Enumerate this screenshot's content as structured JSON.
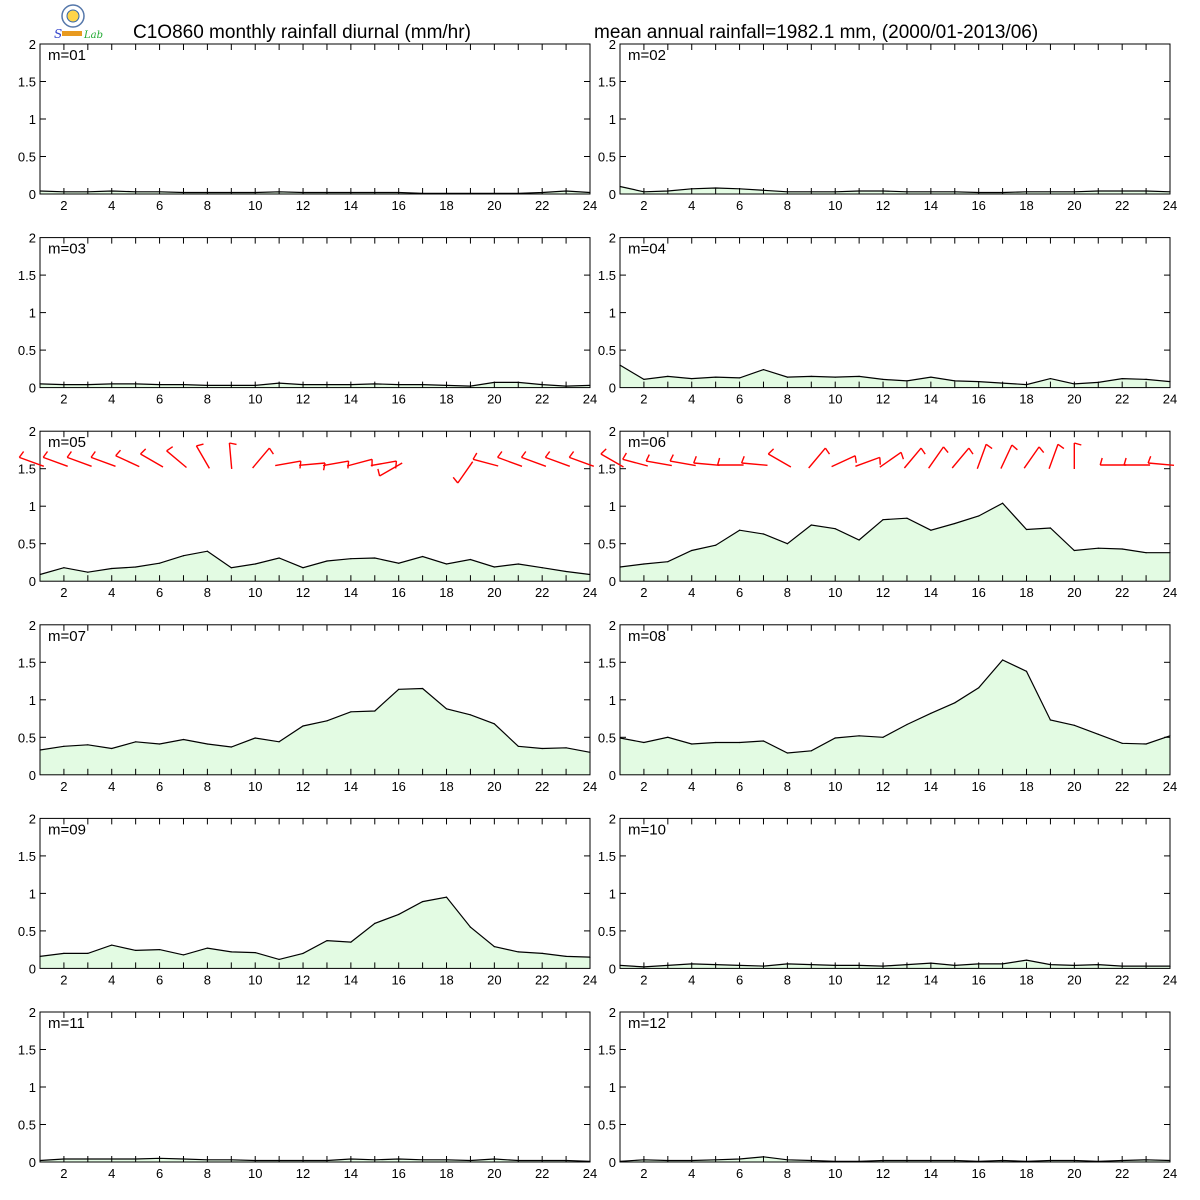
{
  "header": {
    "title_left": "C1O860 monthly rainfall diurnal (mm/hr)",
    "title_right": "mean annual rainfall=1982.1 mm, (2000/01-2013/06)",
    "logo_icon": "agency-seal-icon",
    "logo_text": "Lab"
  },
  "colors": {
    "fill": "#e3fbe3",
    "line": "#000000",
    "wind": "#ff0000"
  },
  "chart_data": [
    {
      "type": "area",
      "label": "m=01",
      "xlim": [
        1,
        24
      ],
      "ylim": [
        0,
        2
      ],
      "yticks": [
        "0",
        "0.5",
        "1",
        "1.5",
        "2"
      ],
      "xticks": [
        "2",
        "4",
        "6",
        "8",
        "10",
        "12",
        "14",
        "16",
        "18",
        "20",
        "22",
        "24"
      ],
      "x": [
        1,
        2,
        3,
        4,
        5,
        6,
        7,
        8,
        9,
        10,
        11,
        12,
        13,
        14,
        15,
        16,
        17,
        18,
        19,
        20,
        21,
        22,
        23,
        24
      ],
      "values": [
        0.04,
        0.03,
        0.03,
        0.04,
        0.03,
        0.03,
        0.02,
        0.02,
        0.02,
        0.02,
        0.03,
        0.02,
        0.02,
        0.02,
        0.02,
        0.02,
        0.01,
        0.01,
        0.01,
        0.01,
        0.01,
        0.02,
        0.04,
        0.02
      ]
    },
    {
      "type": "area",
      "label": "m=02",
      "xlim": [
        1,
        24
      ],
      "ylim": [
        0,
        2
      ],
      "yticks": [
        "0",
        "0.5",
        "1",
        "1.5",
        "2"
      ],
      "xticks": [
        "2",
        "4",
        "6",
        "8",
        "10",
        "12",
        "14",
        "16",
        "18",
        "20",
        "22",
        "24"
      ],
      "x": [
        1,
        2,
        3,
        4,
        5,
        6,
        7,
        8,
        9,
        10,
        11,
        12,
        13,
        14,
        15,
        16,
        17,
        18,
        19,
        20,
        21,
        22,
        23,
        24
      ],
      "values": [
        0.1,
        0.03,
        0.04,
        0.07,
        0.08,
        0.07,
        0.05,
        0.03,
        0.03,
        0.03,
        0.04,
        0.04,
        0.03,
        0.03,
        0.03,
        0.02,
        0.02,
        0.03,
        0.03,
        0.03,
        0.04,
        0.04,
        0.04,
        0.03
      ]
    },
    {
      "type": "area",
      "label": "m=03",
      "xlim": [
        1,
        24
      ],
      "ylim": [
        0,
        2
      ],
      "yticks": [
        "0",
        "0.5",
        "1",
        "1.5",
        "2"
      ],
      "xticks": [
        "2",
        "4",
        "6",
        "8",
        "10",
        "12",
        "14",
        "16",
        "18",
        "20",
        "22",
        "24"
      ],
      "x": [
        1,
        2,
        3,
        4,
        5,
        6,
        7,
        8,
        9,
        10,
        11,
        12,
        13,
        14,
        15,
        16,
        17,
        18,
        19,
        20,
        21,
        22,
        23,
        24
      ],
      "values": [
        0.05,
        0.04,
        0.04,
        0.05,
        0.05,
        0.04,
        0.04,
        0.03,
        0.03,
        0.03,
        0.06,
        0.04,
        0.04,
        0.04,
        0.05,
        0.04,
        0.04,
        0.03,
        0.02,
        0.07,
        0.07,
        0.04,
        0.02,
        0.03
      ]
    },
    {
      "type": "area",
      "label": "m=04",
      "xlim": [
        1,
        24
      ],
      "ylim": [
        0,
        2
      ],
      "yticks": [
        "0",
        "0.5",
        "1",
        "1.5",
        "2"
      ],
      "xticks": [
        "2",
        "4",
        "6",
        "8",
        "10",
        "12",
        "14",
        "16",
        "18",
        "20",
        "22",
        "24"
      ],
      "x": [
        1,
        2,
        3,
        4,
        5,
        6,
        7,
        8,
        9,
        10,
        11,
        12,
        13,
        14,
        15,
        16,
        17,
        18,
        19,
        20,
        21,
        22,
        23,
        24
      ],
      "values": [
        0.3,
        0.11,
        0.15,
        0.12,
        0.14,
        0.13,
        0.24,
        0.14,
        0.15,
        0.14,
        0.15,
        0.11,
        0.09,
        0.14,
        0.09,
        0.08,
        0.06,
        0.04,
        0.12,
        0.05,
        0.07,
        0.12,
        0.11,
        0.08
      ]
    },
    {
      "type": "area",
      "label": "m=05",
      "xlim": [
        1,
        24
      ],
      "ylim": [
        0,
        2
      ],
      "yticks": [
        "0",
        "0.5",
        "1",
        "1.5",
        "2"
      ],
      "xticks": [
        "2",
        "4",
        "6",
        "8",
        "10",
        "12",
        "14",
        "16",
        "18",
        "20",
        "22",
        "24"
      ],
      "x": [
        1,
        2,
        3,
        4,
        5,
        6,
        7,
        8,
        9,
        10,
        11,
        12,
        13,
        14,
        15,
        16,
        17,
        18,
        19,
        20,
        21,
        22,
        23,
        24
      ],
      "values": [
        0.09,
        0.18,
        0.12,
        0.17,
        0.19,
        0.24,
        0.34,
        0.4,
        0.18,
        0.23,
        0.31,
        0.18,
        0.27,
        0.3,
        0.31,
        0.24,
        0.33,
        0.23,
        0.29,
        0.19,
        0.23,
        0.18,
        0.13,
        0.09
      ],
      "wind_barbs": [
        {
          "x": 1,
          "dir": 290
        },
        {
          "x": 2,
          "dir": 290
        },
        {
          "x": 3,
          "dir": 290
        },
        {
          "x": 4,
          "dir": 290
        },
        {
          "x": 5,
          "dir": 295
        },
        {
          "x": 6,
          "dir": 300
        },
        {
          "x": 7,
          "dir": 310
        },
        {
          "x": 8,
          "dir": 330
        },
        {
          "x": 9,
          "dir": 355
        },
        {
          "x": 10,
          "dir": 40
        },
        {
          "x": 11,
          "dir": 80
        },
        {
          "x": 12,
          "dir": 85
        },
        {
          "x": 13,
          "dir": 80
        },
        {
          "x": 14,
          "dir": 75
        },
        {
          "x": 15,
          "dir": 80
        },
        {
          "x": 16,
          "dir": 240
        },
        {
          "x": 19,
          "dir": 215
        },
        {
          "x": 20,
          "dir": 285
        },
        {
          "x": 21,
          "dir": 290
        },
        {
          "x": 22,
          "dir": 290
        },
        {
          "x": 23,
          "dir": 290
        },
        {
          "x": 24,
          "dir": 290
        }
      ]
    },
    {
      "type": "area",
      "label": "m=06",
      "xlim": [
        1,
        24
      ],
      "ylim": [
        0,
        2
      ],
      "yticks": [
        "0",
        "0.5",
        "1",
        "1.5",
        "2"
      ],
      "xticks": [
        "2",
        "4",
        "6",
        "8",
        "10",
        "12",
        "14",
        "16",
        "18",
        "20",
        "22",
        "24"
      ],
      "x": [
        1,
        2,
        3,
        4,
        5,
        6,
        7,
        8,
        9,
        10,
        11,
        12,
        13,
        14,
        15,
        16,
        17,
        18,
        19,
        20,
        21,
        22,
        23,
        24
      ],
      "values": [
        0.19,
        0.23,
        0.26,
        0.41,
        0.48,
        0.68,
        0.63,
        0.5,
        0.75,
        0.7,
        0.55,
        0.82,
        0.84,
        0.68,
        0.77,
        0.87,
        1.04,
        0.69,
        0.71,
        0.41,
        0.44,
        0.43,
        0.38,
        0.38
      ],
      "wind_barbs": [
        {
          "x": 1,
          "dir": 300
        },
        {
          "x": 2,
          "dir": 285
        },
        {
          "x": 3,
          "dir": 280
        },
        {
          "x": 4,
          "dir": 280
        },
        {
          "x": 5,
          "dir": 275
        },
        {
          "x": 6,
          "dir": 270
        },
        {
          "x": 7,
          "dir": 275
        },
        {
          "x": 8,
          "dir": 300
        },
        {
          "x": 9,
          "dir": 40
        },
        {
          "x": 10,
          "dir": 65
        },
        {
          "x": 11,
          "dir": 70
        },
        {
          "x": 12,
          "dir": 55
        },
        {
          "x": 13,
          "dir": 40
        },
        {
          "x": 14,
          "dir": 35
        },
        {
          "x": 15,
          "dir": 40
        },
        {
          "x": 16,
          "dir": 20
        },
        {
          "x": 17,
          "dir": 25
        },
        {
          "x": 18,
          "dir": 35
        },
        {
          "x": 19,
          "dir": 20
        },
        {
          "x": 20,
          "dir": 360
        },
        {
          "x": 22,
          "dir": 270
        },
        {
          "x": 23,
          "dir": 270
        },
        {
          "x": 24,
          "dir": 275
        }
      ]
    },
    {
      "type": "area",
      "label": "m=07",
      "xlim": [
        1,
        24
      ],
      "ylim": [
        0,
        2
      ],
      "yticks": [
        "0",
        "0.5",
        "1",
        "1.5",
        "2"
      ],
      "xticks": [
        "2",
        "4",
        "6",
        "8",
        "10",
        "12",
        "14",
        "16",
        "18",
        "20",
        "22",
        "24"
      ],
      "x": [
        1,
        2,
        3,
        4,
        5,
        6,
        7,
        8,
        9,
        10,
        11,
        12,
        13,
        14,
        15,
        16,
        17,
        18,
        19,
        20,
        21,
        22,
        23,
        24
      ],
      "values": [
        0.33,
        0.38,
        0.4,
        0.35,
        0.44,
        0.41,
        0.47,
        0.41,
        0.37,
        0.49,
        0.44,
        0.65,
        0.72,
        0.84,
        0.85,
        1.14,
        1.15,
        0.88,
        0.8,
        0.68,
        0.38,
        0.35,
        0.36,
        0.3
      ]
    },
    {
      "type": "area",
      "label": "m=08",
      "xlim": [
        1,
        24
      ],
      "ylim": [
        0,
        2
      ],
      "yticks": [
        "0",
        "0.5",
        "1",
        "1.5",
        "2"
      ],
      "xticks": [
        "2",
        "4",
        "6",
        "8",
        "10",
        "12",
        "14",
        "16",
        "18",
        "20",
        "22",
        "24"
      ],
      "x": [
        1,
        2,
        3,
        4,
        5,
        6,
        7,
        8,
        9,
        10,
        11,
        12,
        13,
        14,
        15,
        16,
        17,
        18,
        19,
        20,
        21,
        22,
        23,
        24
      ],
      "values": [
        0.49,
        0.43,
        0.5,
        0.41,
        0.43,
        0.43,
        0.45,
        0.29,
        0.32,
        0.49,
        0.52,
        0.5,
        0.67,
        0.82,
        0.96,
        1.16,
        1.53,
        1.38,
        0.73,
        0.66,
        0.54,
        0.42,
        0.41,
        0.52
      ]
    },
    {
      "type": "area",
      "label": "m=09",
      "xlim": [
        1,
        24
      ],
      "ylim": [
        0,
        2
      ],
      "yticks": [
        "0",
        "0.5",
        "1",
        "1.5",
        "2"
      ],
      "xticks": [
        "2",
        "4",
        "6",
        "8",
        "10",
        "12",
        "14",
        "16",
        "18",
        "20",
        "22",
        "24"
      ],
      "x": [
        1,
        2,
        3,
        4,
        5,
        6,
        7,
        8,
        9,
        10,
        11,
        12,
        13,
        14,
        15,
        16,
        17,
        18,
        19,
        20,
        21,
        22,
        23,
        24
      ],
      "values": [
        0.16,
        0.2,
        0.2,
        0.31,
        0.24,
        0.25,
        0.18,
        0.27,
        0.22,
        0.21,
        0.12,
        0.2,
        0.37,
        0.35,
        0.6,
        0.72,
        0.89,
        0.95,
        0.55,
        0.29,
        0.22,
        0.2,
        0.16,
        0.15
      ]
    },
    {
      "type": "area",
      "label": "m=10",
      "xlim": [
        1,
        24
      ],
      "ylim": [
        0,
        2
      ],
      "yticks": [
        "0",
        "0.5",
        "1",
        "1.5",
        "2"
      ],
      "xticks": [
        "2",
        "4",
        "6",
        "8",
        "10",
        "12",
        "14",
        "16",
        "18",
        "20",
        "22",
        "24"
      ],
      "x": [
        1,
        2,
        3,
        4,
        5,
        6,
        7,
        8,
        9,
        10,
        11,
        12,
        13,
        14,
        15,
        16,
        17,
        18,
        19,
        20,
        21,
        22,
        23,
        24
      ],
      "values": [
        0.04,
        0.02,
        0.04,
        0.06,
        0.05,
        0.04,
        0.03,
        0.06,
        0.05,
        0.04,
        0.04,
        0.03,
        0.05,
        0.07,
        0.04,
        0.06,
        0.06,
        0.11,
        0.05,
        0.04,
        0.05,
        0.03,
        0.03,
        0.03
      ]
    },
    {
      "type": "area",
      "label": "m=11",
      "xlim": [
        1,
        24
      ],
      "ylim": [
        0,
        2
      ],
      "yticks": [
        "0",
        "0.5",
        "1",
        "1.5",
        "2"
      ],
      "xticks": [
        "2",
        "4",
        "6",
        "8",
        "10",
        "12",
        "14",
        "16",
        "18",
        "20",
        "22",
        "24"
      ],
      "x": [
        1,
        2,
        3,
        4,
        5,
        6,
        7,
        8,
        9,
        10,
        11,
        12,
        13,
        14,
        15,
        16,
        17,
        18,
        19,
        20,
        21,
        22,
        23,
        24
      ],
      "values": [
        0.02,
        0.04,
        0.04,
        0.04,
        0.04,
        0.05,
        0.04,
        0.03,
        0.03,
        0.02,
        0.02,
        0.02,
        0.02,
        0.04,
        0.03,
        0.04,
        0.03,
        0.03,
        0.02,
        0.04,
        0.02,
        0.02,
        0.02,
        0.01
      ]
    },
    {
      "type": "area",
      "label": "m=12",
      "xlim": [
        1,
        24
      ],
      "ylim": [
        0,
        2
      ],
      "yticks": [
        "0",
        "0.5",
        "1",
        "1.5",
        "2"
      ],
      "xticks": [
        "2",
        "4",
        "6",
        "8",
        "10",
        "12",
        "14",
        "16",
        "18",
        "20",
        "22",
        "24"
      ],
      "x": [
        1,
        2,
        3,
        4,
        5,
        6,
        7,
        8,
        9,
        10,
        11,
        12,
        13,
        14,
        15,
        16,
        17,
        18,
        19,
        20,
        21,
        22,
        23,
        24
      ],
      "values": [
        0.01,
        0.03,
        0.02,
        0.02,
        0.03,
        0.04,
        0.07,
        0.03,
        0.02,
        0.01,
        0.01,
        0.02,
        0.02,
        0.02,
        0.02,
        0.01,
        0.02,
        0.01,
        0.02,
        0.02,
        0.01,
        0.02,
        0.03,
        0.02
      ]
    }
  ]
}
